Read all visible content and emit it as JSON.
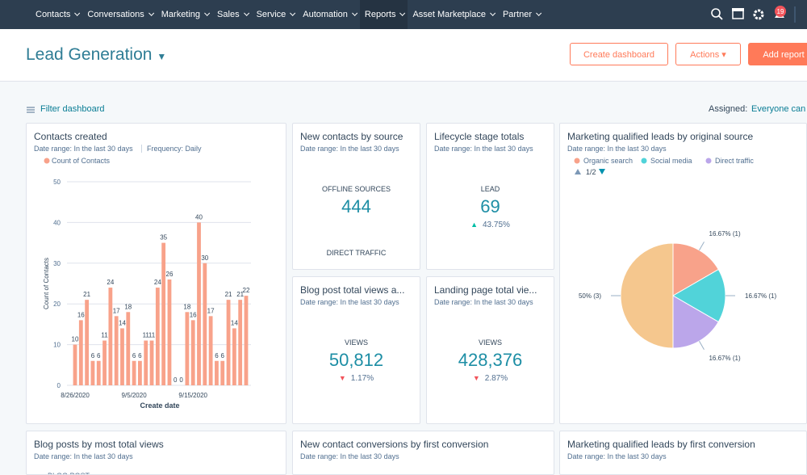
{
  "nav": {
    "items": [
      "Contacts",
      "Conversations",
      "Marketing",
      "Sales",
      "Service",
      "Automation",
      "Reports",
      "Asset Marketplace",
      "Partner"
    ],
    "badge": "19"
  },
  "header": {
    "title": "Lead Generation",
    "buttons": [
      "Create dashboard",
      "Actions",
      "Add report"
    ]
  },
  "toolbar": {
    "filter": "Filter dashboard",
    "assigned_label": "Assigned:",
    "assigned_value": "Everyone can e"
  },
  "cards": [
    {
      "title": "Contacts created",
      "date_range": "Date range: In the last 30 days",
      "frequency": "Frequency: Daily",
      "chart": {
        "type": "bar",
        "categories": [
          "8/26/2020",
          null,
          null,
          null,
          null,
          null,
          null,
          null,
          null,
          null,
          "9/5/2020",
          null,
          null,
          null,
          null,
          null,
          null,
          null,
          null,
          null,
          "9/15/2020",
          null,
          null,
          null,
          null,
          null,
          null,
          null,
          null,
          null
        ],
        "series": [
          {
            "name": "Count of Contacts",
            "color": "#f8a28a",
            "values": [
              10,
              16,
              21,
              6,
              6,
              11,
              24,
              17,
              14,
              18,
              6,
              6,
              11,
              11,
              24,
              35,
              26,
              0,
              0,
              18,
              16,
              40,
              30,
              17,
              6,
              6,
              21,
              14,
              21,
              22
            ]
          }
        ],
        "ylim": [
          0,
          50
        ],
        "yticks": [
          0,
          10,
          20,
          30,
          40,
          50
        ],
        "grid": true,
        "ylabel": "Count of Contacts",
        "xlabel": "Create date"
      }
    },
    {
      "title": "New contacts by source",
      "date_range": "Date range: In the last 30 days",
      "label": "OFFLINE SOURCES",
      "value": "444",
      "next_label": "DIRECT TRAFFIC"
    },
    {
      "title": "Lifecycle stage totals",
      "date_range": "Date range: In the last 30 days",
      "label": "LEAD",
      "value": "69",
      "change": "43.75%",
      "trend": "up"
    },
    {
      "title": "Marketing qualified leads by original source",
      "date_range": "Date range: In the last 30 days",
      "legend_page": "1/2",
      "chart": {
        "type": "pie",
        "labels": [
          "Organic search",
          "Social media",
          "Direct traffic",
          null
        ],
        "values": [
          16.67,
          16.67,
          16.67,
          50
        ],
        "value_labels": [
          "16.67% (1)",
          "16.67% (1)",
          "16.67% (1)",
          "50% (3)"
        ],
        "colors": [
          "#f8a28a",
          "#51d3d9",
          "#bba6ea",
          "#f5c78e"
        ]
      }
    },
    {
      "title": "Blog post total views a...",
      "date_range": "Date range: In the last 30 days",
      "label": "VIEWS",
      "value": "50,812",
      "change": "1.17%",
      "trend": "down"
    },
    {
      "title": "Landing page total vie...",
      "date_range": "Date range: In the last 30 days",
      "label": "VIEWS",
      "value": "428,376",
      "change": "2.87%",
      "trend": "down"
    },
    {
      "title": "Blog posts by most total views",
      "date_range": "Date range: In the last 30 days",
      "column": "BLOG POST"
    },
    {
      "title": "New contact conversions by first conversion",
      "date_range": "Date range: In the last 30 days"
    },
    {
      "title": "Marketing qualified leads by first conversion",
      "date_range": "Date range: In the last 30 days"
    }
  ]
}
